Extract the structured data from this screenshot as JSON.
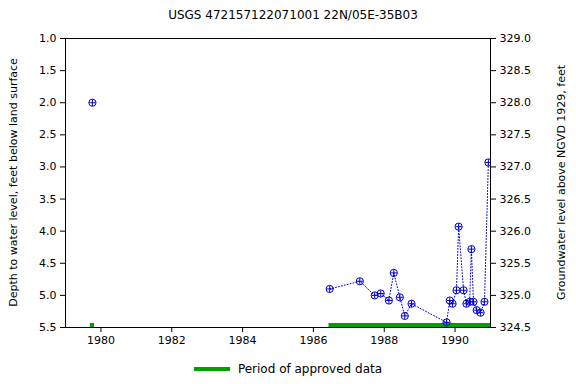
{
  "chart_data": {
    "type": "scatter",
    "title": "USGS 472157122071001 22N/05E-35B03",
    "y_label": "Depth to water level, feet below land surface",
    "y2_label": "Groundwater level above NGVD 1929, feet",
    "x": [
      1979.76,
      null,
      1986.46,
      1987.31,
      1987.73,
      1987.9,
      1988.13,
      1988.27,
      1988.44,
      1988.58,
      1988.77,
      1989.76,
      1989.85,
      1989.93,
      1990.04,
      1990.1,
      1990.24,
      1990.32,
      1990.41,
      1990.46,
      1990.52,
      1990.61,
      1990.72,
      1990.83,
      1990.94
    ],
    "values": [
      2.0,
      null,
      4.9,
      4.78,
      5.0,
      4.97,
      5.08,
      4.65,
      5.03,
      5.32,
      5.13,
      5.42,
      5.08,
      5.13,
      4.92,
      3.93,
      4.92,
      5.13,
      5.1,
      4.28,
      5.1,
      5.23,
      5.27,
      5.1,
      2.93
    ],
    "color": "#0000cc",
    "marker": "circle",
    "line_style": "dotted",
    "xlim": [
      1979.0,
      1991.0
    ],
    "xticks": [
      1980,
      1982,
      1984,
      1986,
      1988,
      1990
    ],
    "ylim": [
      1.0,
      5.5
    ],
    "yticks": [
      {
        "value": 1.0,
        "label": "1.0"
      },
      {
        "value": 1.5,
        "label": "1.5"
      },
      {
        "value": 2.0,
        "label": "2.0"
      },
      {
        "value": 2.5,
        "label": "2.5"
      },
      {
        "value": 3.0,
        "label": "3.0"
      },
      {
        "value": 3.5,
        "label": "3.5"
      },
      {
        "value": 4.0,
        "label": "4.0"
      },
      {
        "value": 4.5,
        "label": "4.5"
      },
      {
        "value": 5.0,
        "label": "5.0"
      },
      {
        "value": 5.5,
        "label": "5.5"
      }
    ],
    "y2lim": [
      329.0,
      324.5
    ],
    "y2ticks": [
      {
        "value": 329.0,
        "label": "329.0"
      },
      {
        "value": 328.5,
        "label": "328.5"
      },
      {
        "value": 328.0,
        "label": "328.0"
      },
      {
        "value": 327.5,
        "label": "327.5"
      },
      {
        "value": 327.0,
        "label": "327.0"
      },
      {
        "value": 326.5,
        "label": "326.5"
      },
      {
        "value": 326.0,
        "label": "326.0"
      },
      {
        "value": 325.5,
        "label": "325.5"
      },
      {
        "value": 325.0,
        "label": "325.0"
      },
      {
        "value": 324.5,
        "label": "324.5"
      }
    ],
    "approved_periods": {
      "name": "Period of approved data",
      "color": "#00a000",
      "ranges": [
        [
          1979.7,
          1979.82
        ],
        [
          1986.44,
          1991.0
        ]
      ]
    },
    "legend": "bottom"
  }
}
